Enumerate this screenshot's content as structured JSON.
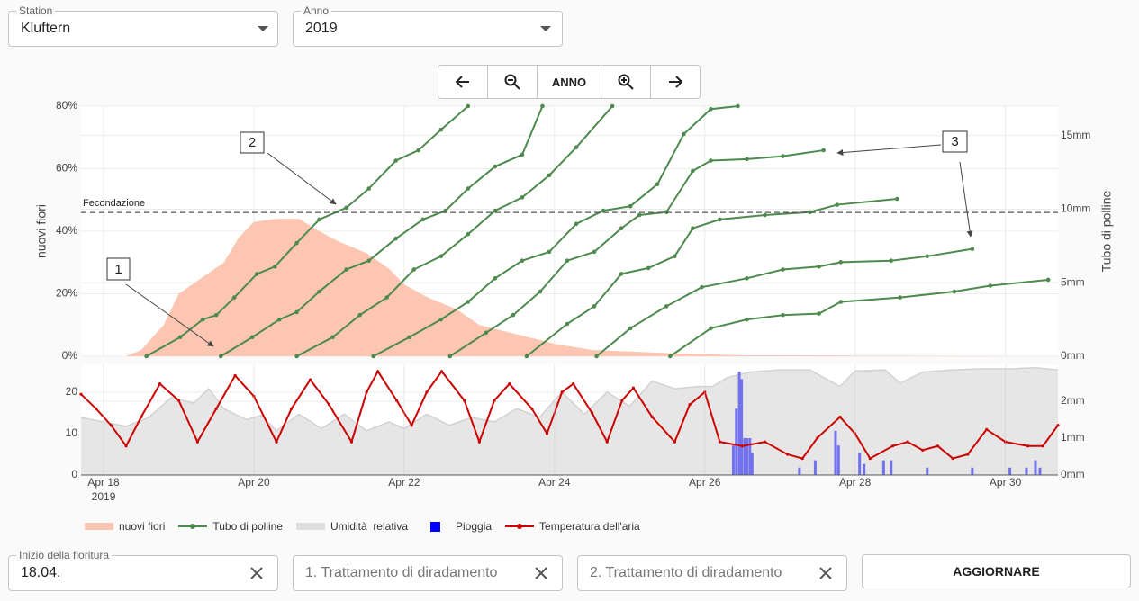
{
  "filters": {
    "station": {
      "label": "Station",
      "value": "Kluftern"
    },
    "year": {
      "label": "Anno",
      "value": "2019"
    }
  },
  "toolbar": {
    "center_label": "ANNO"
  },
  "chart_data": [
    {
      "type": "combo",
      "ylabel": "nuovi fiori",
      "y2label": "Tubo di polline",
      "xlim": [
        17.7,
        30.7
      ],
      "xgrid": [
        18,
        20,
        22,
        24,
        26,
        28,
        30
      ],
      "ylim": [
        0,
        80
      ],
      "yticks": [
        {
          "value": 0,
          "label": "0%"
        },
        {
          "value": 20,
          "label": "20%"
        },
        {
          "value": 40,
          "label": "40%"
        },
        {
          "value": 60,
          "label": "60%"
        },
        {
          "value": 80,
          "label": "80%"
        }
      ],
      "y2lim": [
        0,
        17
      ],
      "y2ticks": [
        {
          "value": 0,
          "label": "0mm"
        },
        {
          "value": 5,
          "label": "5mm"
        },
        {
          "value": 10,
          "label": "10mm"
        },
        {
          "value": 15,
          "label": "15mm"
        }
      ],
      "grid": true,
      "hline": {
        "value": 46,
        "label": "Fecondazione"
      },
      "annotations": [
        "1",
        "2",
        "3"
      ],
      "series": [
        {
          "kind": "area",
          "color": "#fcc6b2",
          "x": [
            18.3,
            18.5,
            18.8,
            19.0,
            19.3,
            19.6,
            19.8,
            20.0,
            20.3,
            20.6,
            20.8,
            21.1,
            21.5,
            21.8,
            22.0,
            22.3,
            22.7,
            23.0,
            23.5,
            24.0,
            24.5,
            25.5,
            26.5,
            30.7
          ],
          "values": [
            0,
            2,
            10,
            20,
            25,
            30,
            38,
            43,
            44,
            44,
            41,
            37,
            33,
            28,
            23,
            19,
            15,
            10,
            7,
            4,
            2,
            1,
            0.3,
            0
          ]
        },
        {
          "kind": "line",
          "axis": "y2",
          "color": "#4e8a4e",
          "x": [
            18.57,
            19.02,
            19.32,
            19.5,
            19.74,
            20.04,
            20.28,
            20.57,
            20.87,
            21.23,
            21.53,
            21.89,
            22.19,
            22.49,
            22.85
          ],
          "values": [
            0,
            1.3,
            2.5,
            2.8,
            4,
            5.6,
            6.1,
            7.7,
            9.3,
            10.1,
            11.4,
            13.3,
            14,
            15.4,
            17
          ]
        },
        {
          "kind": "line",
          "axis": "y2",
          "color": "#4e8a4e",
          "x": [
            19.56,
            19.98,
            20.34,
            20.57,
            20.87,
            21.23,
            21.53,
            21.89,
            22.25,
            22.55,
            22.85,
            23.21,
            23.57,
            23.84
          ],
          "values": [
            0,
            1.3,
            2.5,
            3,
            4.4,
            5.9,
            6.5,
            8,
            9.3,
            9.9,
            11.4,
            12.9,
            13.7,
            17
          ]
        },
        {
          "kind": "line",
          "axis": "y2",
          "color": "#4e8a4e",
          "x": [
            20.57,
            21.05,
            21.41,
            21.77,
            22.13,
            22.49,
            22.85,
            23.21,
            23.57,
            23.93,
            24.29,
            24.77
          ],
          "values": [
            0,
            1.3,
            2.8,
            4,
            5.9,
            6.8,
            8.3,
            9.9,
            10.8,
            12.3,
            14.2,
            17
          ]
        },
        {
          "kind": "line",
          "axis": "y2",
          "color": "#4e8a4e",
          "x": [
            21.59,
            22.07,
            22.49,
            22.85,
            23.21,
            23.57,
            23.93,
            24.29,
            24.65,
            25.01,
            25.37,
            25.72,
            26.08,
            26.44
          ],
          "values": [
            0,
            1.3,
            2.5,
            3.7,
            5.3,
            6.5,
            7.1,
            9,
            9.9,
            10.2,
            11.7,
            15.1,
            16.8,
            17
          ]
        },
        {
          "kind": "line",
          "axis": "y2",
          "color": "#4e8a4e",
          "x": [
            22.61,
            23.09,
            23.45,
            23.81,
            24.17,
            24.53,
            24.89,
            25.13,
            25.49,
            25.84,
            26.08,
            26.56,
            27.04,
            27.58
          ],
          "values": [
            0,
            1.6,
            2.8,
            4.4,
            6.5,
            7.1,
            8.7,
            9.6,
            9.8,
            12.6,
            13.3,
            13.4,
            13.6,
            14
          ]
        },
        {
          "kind": "line",
          "axis": "y2",
          "color": "#4e8a4e",
          "x": [
            23.63,
            24.17,
            24.53,
            24.89,
            25.25,
            25.6,
            25.84,
            26.2,
            26.8,
            27.4,
            27.76,
            28.56
          ],
          "values": [
            0,
            2.2,
            3.4,
            5.6,
            6,
            6.8,
            8.7,
            9.3,
            9.6,
            9.8,
            10.3,
            10.7
          ]
        },
        {
          "kind": "line",
          "axis": "y2",
          "color": "#4e8a4e",
          "x": [
            24.56,
            25.01,
            25.49,
            25.96,
            26.56,
            27.04,
            27.52,
            27.81,
            28.48,
            28.96,
            29.56
          ],
          "values": [
            0,
            1.9,
            3.4,
            4.7,
            5.3,
            5.9,
            6.1,
            6.4,
            6.5,
            6.8,
            7.3
          ]
        },
        {
          "kind": "line",
          "axis": "y2",
          "color": "#4e8a4e",
          "x": [
            25.54,
            26.08,
            26.56,
            27.04,
            27.52,
            27.81,
            28.6,
            29.32,
            29.8,
            30.57
          ],
          "values": [
            0,
            1.9,
            2.5,
            2.8,
            2.9,
            3.7,
            4,
            4.4,
            4.8,
            5.2
          ]
        }
      ]
    },
    {
      "type": "combo",
      "xlim": [
        17.7,
        30.7
      ],
      "xticks": [
        {
          "value": 18,
          "label": "Apr 18",
          "sublabel": "2019"
        },
        {
          "value": 20,
          "label": "Apr 20"
        },
        {
          "value": 22,
          "label": "Apr 22"
        },
        {
          "value": 24,
          "label": "Apr 24"
        },
        {
          "value": 26,
          "label": "Apr 26"
        },
        {
          "value": 28,
          "label": "Apr 28"
        },
        {
          "value": 30,
          "label": "Apr 30"
        }
      ],
      "ylim": [
        0,
        26.7
      ],
      "yticks": [
        0,
        10,
        20
      ],
      "y2lim": [
        0,
        3
      ],
      "y2ticks": [
        {
          "value": 0,
          "label": "0mm"
        },
        {
          "value": 1,
          "label": "1mm"
        },
        {
          "value": 2,
          "label": "2mm"
        }
      ],
      "y3lim": [
        0,
        100
      ],
      "grid": true,
      "series": [
        {
          "kind": "area",
          "axis": "y3",
          "color": "#e6e6e6",
          "x": [
            17.7,
            18.0,
            18.3,
            18.6,
            18.9,
            19.2,
            19.4,
            19.6,
            19.9,
            20.1,
            20.3,
            20.6,
            20.9,
            21.2,
            21.5,
            21.8,
            22.0,
            22.3,
            22.6,
            22.9,
            23.2,
            23.5,
            23.8,
            24.1,
            24.4,
            24.7,
            25.0,
            25.3,
            25.6,
            25.9,
            26.1,
            26.3,
            26.6,
            27.0,
            27.4,
            27.8,
            28.0,
            28.4,
            28.6,
            28.9,
            29.3,
            29.7,
            30.1,
            30.4,
            30.7
          ],
          "values": [
            52,
            48,
            44,
            52,
            70,
            65,
            78,
            60,
            50,
            54,
            40,
            55,
            42,
            55,
            40,
            48,
            42,
            55,
            45,
            52,
            48,
            60,
            52,
            75,
            55,
            75,
            62,
            85,
            78,
            80,
            80,
            88,
            93,
            95,
            95,
            80,
            94,
            95,
            83,
            93,
            95,
            96,
            96,
            97,
            95
          ]
        },
        {
          "kind": "bar",
          "axis": "y2",
          "color": "#7272ee",
          "x": [
            26.38,
            26.42,
            26.46,
            26.49,
            26.53,
            26.56,
            26.6,
            26.63,
            27.26,
            27.47,
            27.74,
            27.78,
            28.06,
            28.12,
            28.38,
            28.48,
            28.96,
            29.56,
            30.06,
            30.28,
            30.4,
            30.46
          ],
          "values": [
            0.8,
            1.8,
            2.8,
            2.6,
            1,
            1,
            1,
            0.6,
            0.2,
            0.4,
            1.2,
            0.8,
            0.6,
            0.3,
            0.4,
            0.4,
            0.2,
            0.2,
            0.2,
            0.2,
            0.4,
            0.2
          ]
        },
        {
          "kind": "line",
          "color": "#cc0000",
          "x": [
            17.7,
            17.9,
            18.1,
            18.3,
            18.5,
            18.75,
            19.0,
            19.25,
            19.5,
            19.75,
            20.0,
            20.3,
            20.5,
            20.75,
            21.0,
            21.3,
            21.5,
            21.65,
            21.9,
            22.1,
            22.3,
            22.5,
            22.8,
            23.0,
            23.2,
            23.4,
            23.7,
            23.9,
            24.1,
            24.25,
            24.5,
            24.7,
            24.9,
            25.05,
            25.3,
            25.6,
            25.8,
            26.0,
            26.2,
            26.5,
            26.8,
            27.1,
            27.3,
            27.5,
            27.8,
            28.0,
            28.2,
            28.5,
            28.7,
            28.9,
            29.1,
            29.3,
            29.5,
            29.75,
            30.0,
            30.3,
            30.5,
            30.7
          ],
          "values": [
            19.5,
            16,
            12,
            7,
            14,
            22,
            18,
            8,
            16,
            24,
            19,
            8,
            16,
            23,
            17,
            8,
            20,
            25,
            18,
            12,
            20,
            25,
            18,
            8,
            18,
            22,
            16,
            10,
            20,
            22,
            15,
            8,
            18,
            21,
            14,
            8,
            17,
            20,
            8,
            7,
            8,
            5,
            4,
            9,
            14,
            10,
            4,
            7,
            8,
            6,
            7,
            4,
            5,
            11,
            8,
            7,
            7,
            12
          ]
        }
      ]
    }
  ],
  "legend": [
    {
      "name": "nuovi fiori",
      "color": "#fcc6b2",
      "symbol": "area"
    },
    {
      "name": "Tubo di polline",
      "color": "#4e8a4e",
      "symbol": "line"
    },
    {
      "name": "Umidità  relativa",
      "color": "#dedede",
      "symbol": "area"
    },
    {
      "name": "Pioggia",
      "color": "#0000ff",
      "symbol": "square"
    },
    {
      "name": "Temperatura dell'aria",
      "color": "#cc0000",
      "symbol": "line"
    }
  ],
  "form": {
    "bloom_start": {
      "label": "Inizio della fioritura",
      "value": "18.04."
    },
    "thinning_1": {
      "placeholder": "1. Trattamento di diradamento"
    },
    "thinning_2": {
      "placeholder": "2. Trattamento di diradamento"
    },
    "submit": "AGGIORNARE"
  }
}
